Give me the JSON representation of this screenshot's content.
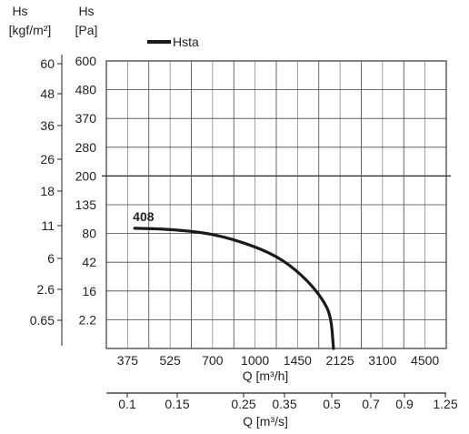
{
  "chart_data": {
    "type": "line",
    "legend": {
      "label": "Hsta",
      "placement": "top-left"
    },
    "left_axis_outer": {
      "title_line1": "Hs",
      "title_line2": "[kgf/m²]",
      "ticks": [
        "60",
        "48",
        "36",
        "26",
        "18",
        "11",
        "6",
        "2.6",
        "0.65"
      ]
    },
    "left_axis_inner": {
      "title_line1": "Hs",
      "title_line2": "[Pa]",
      "ticks": [
        "600",
        "480",
        "370",
        "280",
        "200",
        "135",
        "80",
        "42",
        "16",
        "2.2"
      ]
    },
    "x_axis_primary": {
      "label": "Q [m³/h]",
      "ticks": [
        "375",
        "525",
        "700",
        "1000",
        "1450",
        "2125",
        "3100",
        "4500"
      ]
    },
    "x_axis_secondary": {
      "label": "Q [m³/s]",
      "ticks": [
        "0.1",
        "0.15",
        "0.25",
        "0.35",
        "0.5",
        "0.7",
        "0.9",
        "1.25"
      ]
    },
    "grid": true,
    "series": [
      {
        "name": "408",
        "color": "#1a1a1a",
        "points": [
          {
            "q": 400,
            "hs": 90
          },
          {
            "q": 525,
            "hs": 88
          },
          {
            "q": 700,
            "hs": 80
          },
          {
            "q": 1000,
            "hs": 63
          },
          {
            "q": 1300,
            "hs": 45
          },
          {
            "q": 1600,
            "hs": 26
          },
          {
            "q": 1850,
            "hs": 12
          },
          {
            "q": 1980,
            "hs": 4
          },
          {
            "q": 2020,
            "hs": 0
          }
        ]
      }
    ]
  }
}
